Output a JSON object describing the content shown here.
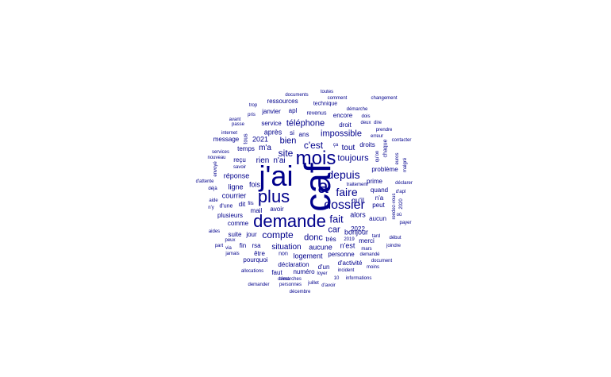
{
  "color": "#00008B",
  "background": "#ffffff",
  "words": [
    {
      "text": "caf",
      "weight": 100
    },
    {
      "text": "j'ai",
      "weight": 70
    },
    {
      "text": "demande",
      "weight": 55
    },
    {
      "text": "mois",
      "weight": 50
    },
    {
      "text": "plus",
      "weight": 48
    },
    {
      "text": "a",
      "weight": 46
    },
    {
      "text": "dossier",
      "weight": 36
    },
    {
      "text": "depuis",
      "weight": 30
    },
    {
      "text": "faire",
      "weight": 30
    },
    {
      "text": "fait",
      "weight": 28
    },
    {
      "text": "compte",
      "weight": 25
    },
    {
      "text": "c'est",
      "weight": 24
    },
    {
      "text": "site",
      "weight": 22
    },
    {
      "text": "toujours",
      "weight": 22
    },
    {
      "text": "impossible",
      "weight": 22
    },
    {
      "text": "car",
      "weight": 20
    },
    {
      "text": "bien",
      "weight": 20
    },
    {
      "text": "donc",
      "weight": 20
    },
    {
      "text": "tout",
      "weight": 19
    },
    {
      "text": "situation",
      "weight": 18
    },
    {
      "text": "téléphone",
      "weight": 18
    },
    {
      "text": "réponse",
      "weight": 17
    },
    {
      "text": "m'a",
      "weight": 17
    },
    {
      "text": "aucune",
      "weight": 17
    },
    {
      "text": "logement",
      "weight": 16
    },
    {
      "text": "rien",
      "weight": 16
    },
    {
      "text": "n'ai",
      "weight": 16
    },
    {
      "text": "courrier",
      "weight": 15
    },
    {
      "text": "ligne",
      "weight": 15
    },
    {
      "text": "fois",
      "weight": 15
    },
    {
      "text": "après",
      "weight": 15
    },
    {
      "text": "2021",
      "weight": 15
    },
    {
      "text": "qu'il",
      "weight": 15
    },
    {
      "text": "bonjour",
      "weight": 15
    },
    {
      "text": "2022",
      "weight": 14
    },
    {
      "text": "alors",
      "weight": 14
    },
    {
      "text": "très",
      "weight": 14
    },
    {
      "text": "n'est",
      "weight": 14
    },
    {
      "text": "déclaration",
      "weight": 14
    },
    {
      "text": "numéro",
      "weight": 14
    },
    {
      "text": "ressources",
      "weight": 13
    },
    {
      "text": "revenus",
      "weight": 13
    },
    {
      "text": "technique",
      "weight": 13
    },
    {
      "text": "encore",
      "weight": 13
    },
    {
      "text": "droit",
      "weight": 13
    },
    {
      "text": "droits",
      "weight": 13
    },
    {
      "text": "temps",
      "weight": 13
    },
    {
      "text": "message",
      "weight": 13
    },
    {
      "text": "si",
      "weight": 13
    },
    {
      "text": "ans",
      "weight": 13
    },
    {
      "text": "service",
      "weight": 13
    },
    {
      "text": "janvier",
      "weight": 13
    },
    {
      "text": "apl",
      "weight": 13
    },
    {
      "text": "reçu",
      "weight": 13
    },
    {
      "text": "dit",
      "weight": 13
    },
    {
      "text": "mail",
      "weight": 13
    },
    {
      "text": "avoir",
      "weight": 13
    },
    {
      "text": "plusieurs",
      "weight": 13
    },
    {
      "text": "comme",
      "weight": 13
    },
    {
      "text": "suite",
      "weight": 13
    },
    {
      "text": "jour",
      "weight": 13
    },
    {
      "text": "fin",
      "weight": 13
    },
    {
      "text": "rsa",
      "weight": 13
    },
    {
      "text": "être",
      "weight": 13
    },
    {
      "text": "pourquoi",
      "weight": 13
    },
    {
      "text": "faut",
      "weight": 13
    },
    {
      "text": "d'activité",
      "weight": 13
    },
    {
      "text": "merci",
      "weight": 13
    },
    {
      "text": "personne",
      "weight": 13
    },
    {
      "text": "d'un",
      "weight": 13
    },
    {
      "text": "prime",
      "weight": 13
    },
    {
      "text": "quand",
      "weight": 13
    },
    {
      "text": "n'a",
      "weight": 13
    },
    {
      "text": "peut",
      "weight": 13
    },
    {
      "text": "aucun",
      "weight": 13
    },
    {
      "text": "problème",
      "weight": 13
    },
    {
      "text": "d'une",
      "weight": 12
    },
    {
      "text": "non",
      "weight": 12
    },
    {
      "text": "documents",
      "weight": 10
    },
    {
      "text": "toutes",
      "weight": 10
    },
    {
      "text": "comment",
      "weight": 10
    },
    {
      "text": "changement",
      "weight": 10
    },
    {
      "text": "contacter",
      "weight": 10
    },
    {
      "text": "trop",
      "weight": 10
    },
    {
      "text": "pris",
      "weight": 10
    },
    {
      "text": "démarche",
      "weight": 10
    },
    {
      "text": "dois",
      "weight": 10
    },
    {
      "text": "deux",
      "weight": 10
    },
    {
      "text": "dire",
      "weight": 10
    },
    {
      "text": "avant",
      "weight": 10
    },
    {
      "text": "passe",
      "weight": 10
    },
    {
      "text": "prendre",
      "weight": 10
    },
    {
      "text": "erreur",
      "weight": 10
    },
    {
      "text": "internet",
      "weight": 10
    },
    {
      "text": "services",
      "weight": 10
    },
    {
      "text": "nouveau",
      "weight": 10
    },
    {
      "text": "savoir",
      "weight": 10
    },
    {
      "text": "d'attente",
      "weight": 10
    },
    {
      "text": "déjà",
      "weight": 10
    },
    {
      "text": "aide",
      "weight": 10
    },
    {
      "text": "n'y",
      "weight": 10
    },
    {
      "text": "aides",
      "weight": 10
    },
    {
      "text": "peux",
      "weight": 10
    },
    {
      "text": "part",
      "weight": 10
    },
    {
      "text": "via",
      "weight": 10
    },
    {
      "text": "jamais",
      "weight": 10
    },
    {
      "text": "allocations",
      "weight": 10
    },
    {
      "text": "demander",
      "weight": 10
    },
    {
      "text": "démarches",
      "weight": 10
    },
    {
      "text": "personnes",
      "weight": 10
    },
    {
      "text": "s'est",
      "weight": 10
    },
    {
      "text": "juillet",
      "weight": 10
    },
    {
      "text": "décembre",
      "weight": 10
    },
    {
      "text": "d'avoir",
      "weight": 10
    },
    {
      "text": "10",
      "weight": 10
    },
    {
      "text": "informations",
      "weight": 10
    },
    {
      "text": "incident",
      "weight": 10
    },
    {
      "text": "loyer",
      "weight": 10
    },
    {
      "text": "moins",
      "weight": 10
    },
    {
      "text": "document",
      "weight": 10
    },
    {
      "text": "demandé",
      "weight": 10
    },
    {
      "text": "mars",
      "weight": 10
    },
    {
      "text": "joindre",
      "weight": 10
    },
    {
      "text": "début",
      "weight": 10
    },
    {
      "text": "tard",
      "weight": 10
    },
    {
      "text": "2019",
      "weight": 10
    },
    {
      "text": "payer",
      "weight": 10
    },
    {
      "text": "où",
      "weight": 10
    },
    {
      "text": "d'apl",
      "weight": 10
    },
    {
      "text": "déclarer",
      "weight": 10
    },
    {
      "text": "traitement",
      "weight": 10
    },
    {
      "text": "ça",
      "weight": 10
    },
    {
      "text": "fils",
      "weight": 10
    },
    {
      "text": "tous",
      "weight": 10
    },
    {
      "text": "chaque",
      "weight": 10
    },
    {
      "text": "malgré",
      "weight": 10
    },
    {
      "text": "euros",
      "weight": 10
    },
    {
      "text": "envoyé",
      "weight": 10
    },
    {
      "text": "rendez-vous",
      "weight": 10
    },
    {
      "text": "2020",
      "weight": 10
    },
    {
      "text": "qu'on",
      "weight": 10
    }
  ]
}
